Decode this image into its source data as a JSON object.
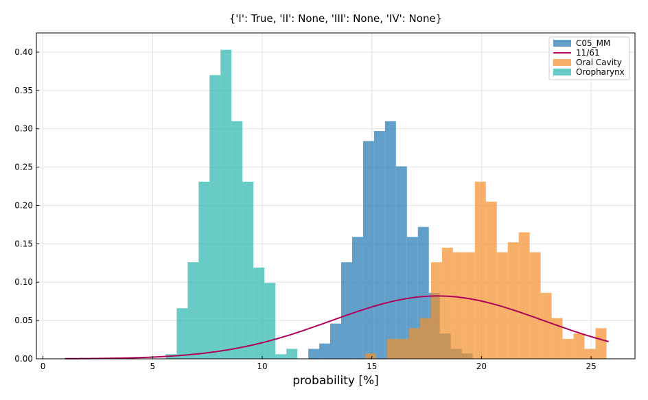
{
  "chart_data": {
    "type": "bar",
    "title": "{'I': True, 'II': None, 'III': None, 'IV': None}",
    "xlabel": "probability [%]",
    "ylabel": "",
    "xlim": [
      -0.3,
      27
    ],
    "ylim": [
      0,
      0.425
    ],
    "grid": true,
    "legend_position": "top-right",
    "xticks": [
      0,
      5,
      10,
      15,
      20,
      25
    ],
    "yticks": [
      0.0,
      0.05,
      0.1,
      0.15,
      0.2,
      0.25,
      0.3,
      0.35,
      0.4
    ],
    "bin_width": 0.5,
    "series": [
      {
        "name": "C05_MM",
        "kind": "histogram",
        "color": "#1f77b4",
        "opacity": 0.7,
        "bin_starts": [
          12.1,
          12.6,
          13.1,
          13.6,
          14.1,
          14.6,
          15.1,
          15.6,
          16.1,
          16.6,
          17.1,
          17.6,
          18.1,
          18.6,
          19.1
        ],
        "values": [
          0.013,
          0.02,
          0.046,
          0.126,
          0.159,
          0.284,
          0.297,
          0.31,
          0.251,
          0.159,
          0.172,
          0.086,
          0.033,
          0.013,
          0.007
        ]
      },
      {
        "name": "11/61",
        "kind": "line",
        "color": "#b0005a",
        "x_start": 1.0,
        "x_end": 25.8,
        "mean": 18.0,
        "std": 4.85,
        "peak": 0.082
      },
      {
        "name": "Oral Cavity",
        "kind": "histogram",
        "color": "#f28e2b",
        "opacity": 0.7,
        "bin_starts": [
          14.7,
          15.7,
          16.2,
          16.7,
          17.2,
          17.7,
          18.2,
          18.7,
          19.2,
          19.7,
          20.2,
          20.7,
          21.2,
          21.7,
          22.2,
          22.7,
          23.2,
          23.7,
          24.2,
          24.7,
          25.2
        ],
        "values": [
          0.007,
          0.026,
          0.026,
          0.04,
          0.053,
          0.126,
          0.145,
          0.139,
          0.139,
          0.231,
          0.205,
          0.139,
          0.152,
          0.165,
          0.139,
          0.086,
          0.053,
          0.026,
          0.033,
          0.013,
          0.04
        ]
      },
      {
        "name": "Oropharynx",
        "kind": "histogram",
        "color": "#20b2aa",
        "opacity": 0.68,
        "bin_starts": [
          5.6,
          6.1,
          6.6,
          7.1,
          7.6,
          8.1,
          8.6,
          9.1,
          9.6,
          10.1,
          10.6,
          11.1
        ],
        "values": [
          0.006,
          0.066,
          0.126,
          0.231,
          0.37,
          0.403,
          0.31,
          0.231,
          0.119,
          0.099,
          0.006,
          0.013
        ]
      }
    ]
  }
}
